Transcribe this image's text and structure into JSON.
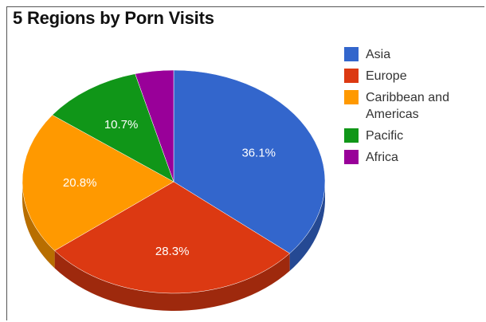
{
  "title": "5 Regions by Porn Visits",
  "chart_data": {
    "type": "pie",
    "title": "5 Regions by Porn Visits",
    "is3d": true,
    "legend_position": "right",
    "series": [
      {
        "name": "Asia",
        "value": 36.1,
        "label": "36.1%",
        "color": "#3366cc"
      },
      {
        "name": "Europe",
        "value": 28.3,
        "label": "28.3%",
        "color": "#dc3912"
      },
      {
        "name": "Caribbean and Americas",
        "value": 20.8,
        "label": "20.8%",
        "color": "#ff9900"
      },
      {
        "name": "Pacific",
        "value": 10.7,
        "label": "10.7%",
        "color": "#109618"
      },
      {
        "name": "Africa",
        "value": 4.1,
        "label": "",
        "color": "#990099"
      }
    ]
  },
  "legend": [
    {
      "label": "Asia",
      "color": "#3366cc"
    },
    {
      "label": "Europe",
      "color": "#dc3912"
    },
    {
      "label": "Caribbean and Americas",
      "color": "#ff9900"
    },
    {
      "label": "Pacific",
      "color": "#109618"
    },
    {
      "label": "Africa",
      "color": "#990099"
    }
  ]
}
